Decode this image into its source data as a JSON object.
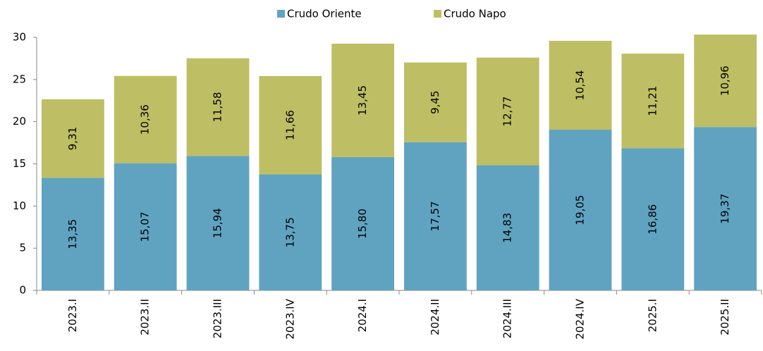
{
  "chart_data": {
    "type": "stacked_bar",
    "categories": [
      "2023.I",
      "2023.II",
      "2023.III",
      "2023.IV",
      "2024.I",
      "2024.II",
      "2024.III",
      "2024.IV",
      "2025.I",
      "2025.II"
    ],
    "series": [
      {
        "name": "Crudo Oriente",
        "color": "#5fa3c1",
        "values": [
          13.35,
          15.07,
          15.94,
          13.75,
          15.8,
          17.57,
          14.83,
          19.05,
          16.86,
          19.37
        ],
        "value_labels": [
          "13,35",
          "15,07",
          "15,94",
          "13,75",
          "15,80",
          "17,57",
          "14,83",
          "19,05",
          "16,86",
          "19,37"
        ]
      },
      {
        "name": "Crudo Napo",
        "color": "#bebe64",
        "values": [
          9.31,
          10.36,
          11.58,
          11.66,
          13.45,
          9.45,
          12.77,
          10.54,
          11.21,
          10.96
        ],
        "value_labels": [
          "9,31",
          "10,36",
          "11,58",
          "11,66",
          "13,45",
          "9,45",
          "12,77",
          "10,54",
          "11,21",
          "10,96"
        ]
      }
    ],
    "ylim": [
      0,
      30
    ],
    "yticks": [
      0,
      5,
      10,
      15,
      20,
      25,
      30
    ],
    "legend": "top"
  }
}
